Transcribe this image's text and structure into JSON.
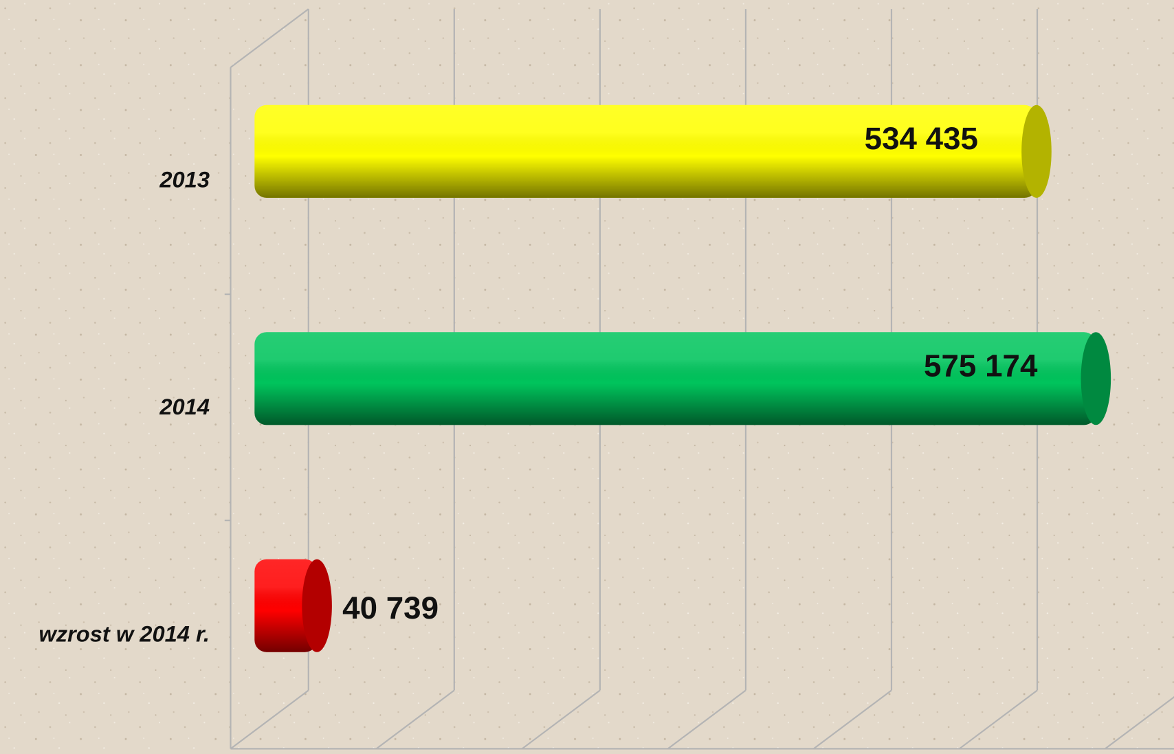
{
  "chart_data": {
    "type": "bar3d",
    "orientation": "horizontal",
    "categories": [
      "2013",
      "2014",
      "wzrost w 2014 r."
    ],
    "values": [
      534435,
      575174,
      40739
    ],
    "value_labels": [
      "534 435",
      "575 174",
      "40 739"
    ],
    "colors": [
      "#ffff00",
      "#00c45c",
      "#ff0000"
    ],
    "xlim": [
      0,
      600000
    ],
    "xticks": [
      0,
      100000,
      200000,
      300000,
      400000,
      500000,
      600000
    ],
    "grid": true
  }
}
